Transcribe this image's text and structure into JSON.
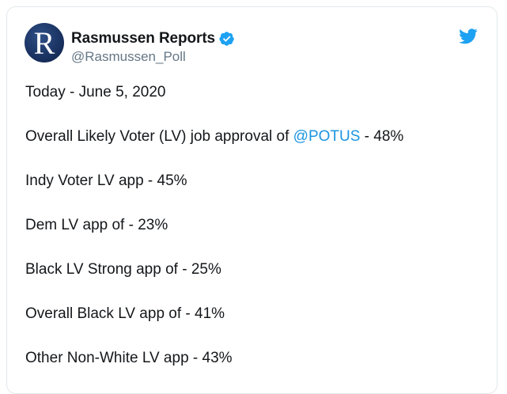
{
  "author": {
    "avatar_letter": "R",
    "display_name": "Rasmussen Reports",
    "handle": "@Rasmussen_Poll",
    "verified": true
  },
  "icons": {
    "verified": "verified-badge-icon",
    "brand": "twitter-bird-icon"
  },
  "colors": {
    "mention": "#1b95e0",
    "verified": "#1da1f2",
    "twitter_brand": "#1da1f2",
    "avatar_bg": "#1b3464"
  },
  "tweet": {
    "lines": [
      {
        "text": "Today - June 5, 2020"
      },
      {
        "prefix": "Overall Likely Voter (LV) job approval of ",
        "mention": "@POTUS",
        "suffix": " - 48%"
      },
      {
        "text": "Indy Voter LV app - 45%"
      },
      {
        "text": "Dem LV app of - 23%"
      },
      {
        "text": "Black LV Strong app of - 25%"
      },
      {
        "text": "Overall Black LV app of - 41%"
      },
      {
        "text": "Other Non-White LV app - 43%"
      }
    ]
  }
}
